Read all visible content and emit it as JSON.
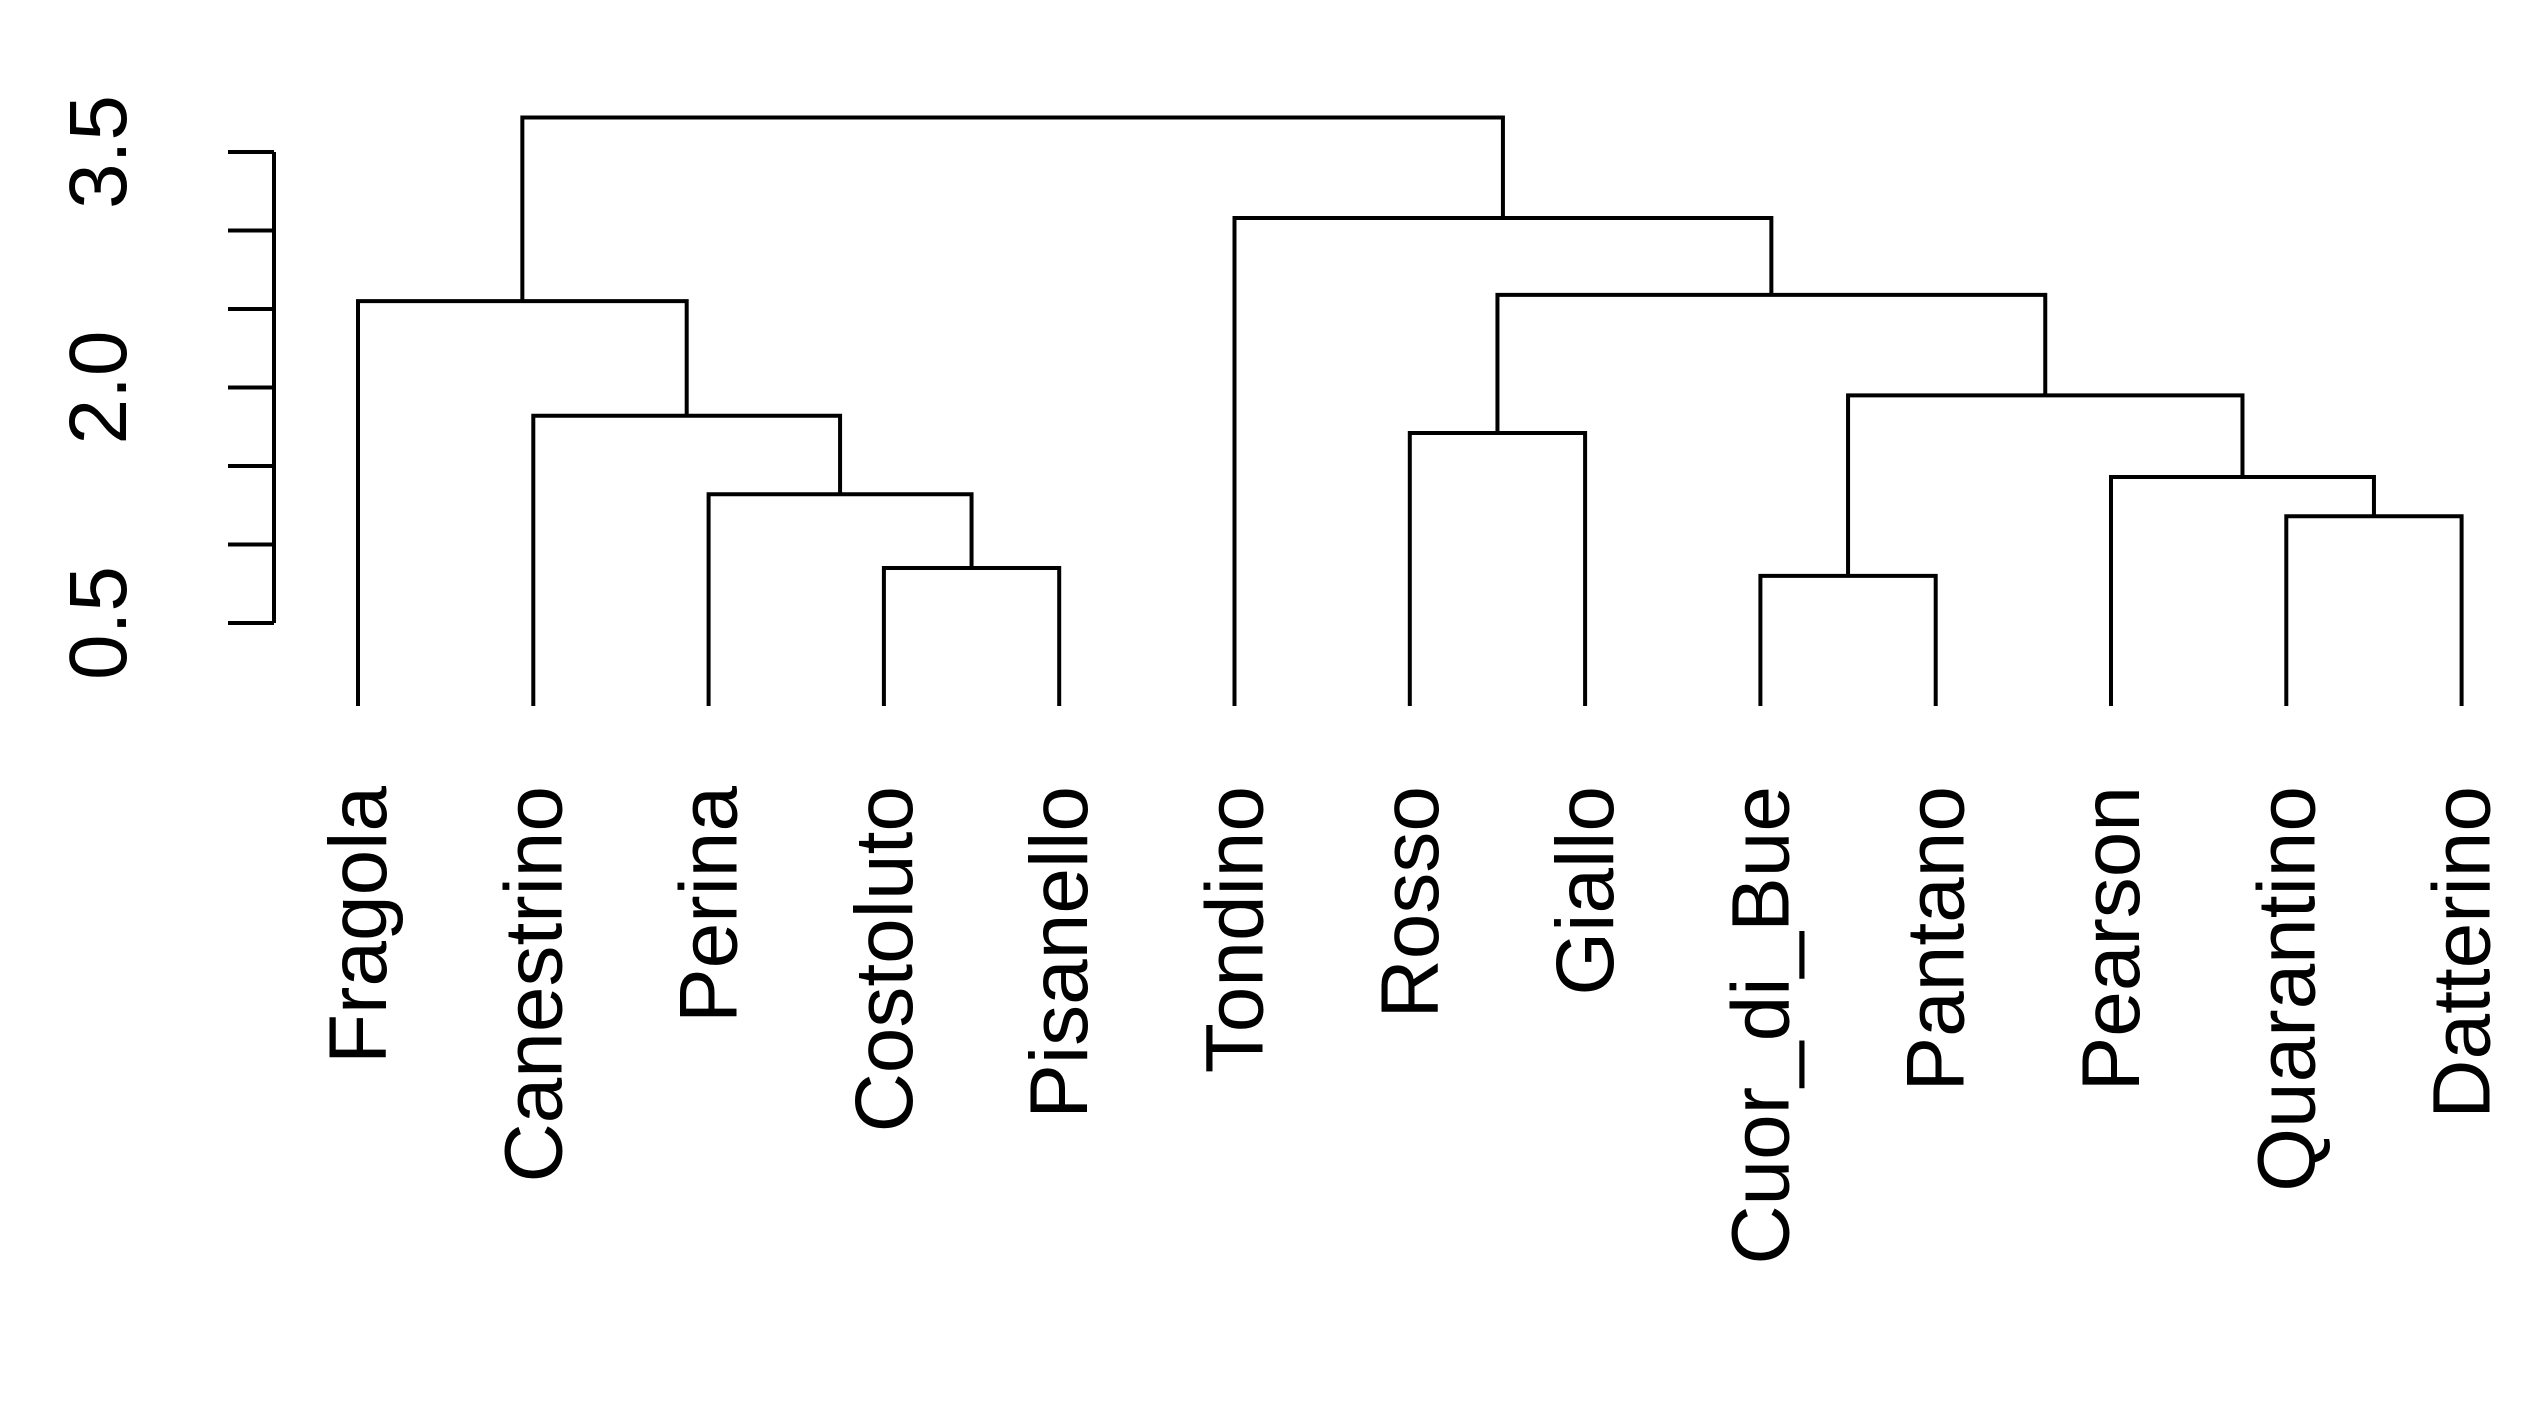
{
  "chart_data": {
    "type": "dendrogram",
    "title": "",
    "xlabel": "",
    "ylabel": "",
    "ylim": [
      0,
      4.0
    ],
    "yticks": [
      0.5,
      1.0,
      1.5,
      2.0,
      2.5,
      3.0,
      3.5
    ],
    "ytick_labels": [
      "0.5",
      "",
      "",
      "2.0",
      "",
      "",
      "3.5"
    ],
    "leaves": [
      "Fragola",
      "Canestrino",
      "Perina",
      "Costoluto",
      "Pisanello",
      "Tondino",
      "Rosso",
      "Giallo",
      "Cuor_di_Bue",
      "Pantano",
      "Pearson",
      "Quarantino",
      "Datterino"
    ],
    "merges": [
      {
        "id": "m1",
        "left": "Costoluto",
        "right": "Pisanello",
        "height": 0.85
      },
      {
        "id": "m2",
        "left": "Perina",
        "right": "m1",
        "height": 1.32
      },
      {
        "id": "m3",
        "left": "Canestrino",
        "right": "m2",
        "height": 1.82
      },
      {
        "id": "m4",
        "left": "Fragola",
        "right": "m3",
        "height": 2.55
      },
      {
        "id": "m5",
        "left": "Quarantino",
        "right": "Datterino",
        "height": 1.18
      },
      {
        "id": "m6",
        "left": "Pearson",
        "right": "m5",
        "height": 1.43
      },
      {
        "id": "m7",
        "left": "Cuor_di_Bue",
        "right": "Pantano",
        "height": 0.8
      },
      {
        "id": "m8",
        "left": "m7",
        "right": "m6",
        "height": 1.95
      },
      {
        "id": "m9",
        "left": "Rosso",
        "right": "Giallo",
        "height": 1.71
      },
      {
        "id": "m10",
        "left": "m9",
        "right": "m8",
        "height": 2.59
      },
      {
        "id": "m11",
        "left": "Tondino",
        "right": "m10",
        "height": 3.08
      },
      {
        "id": "m12",
        "left": "m4",
        "right": "m11",
        "height": 3.72
      }
    ]
  }
}
